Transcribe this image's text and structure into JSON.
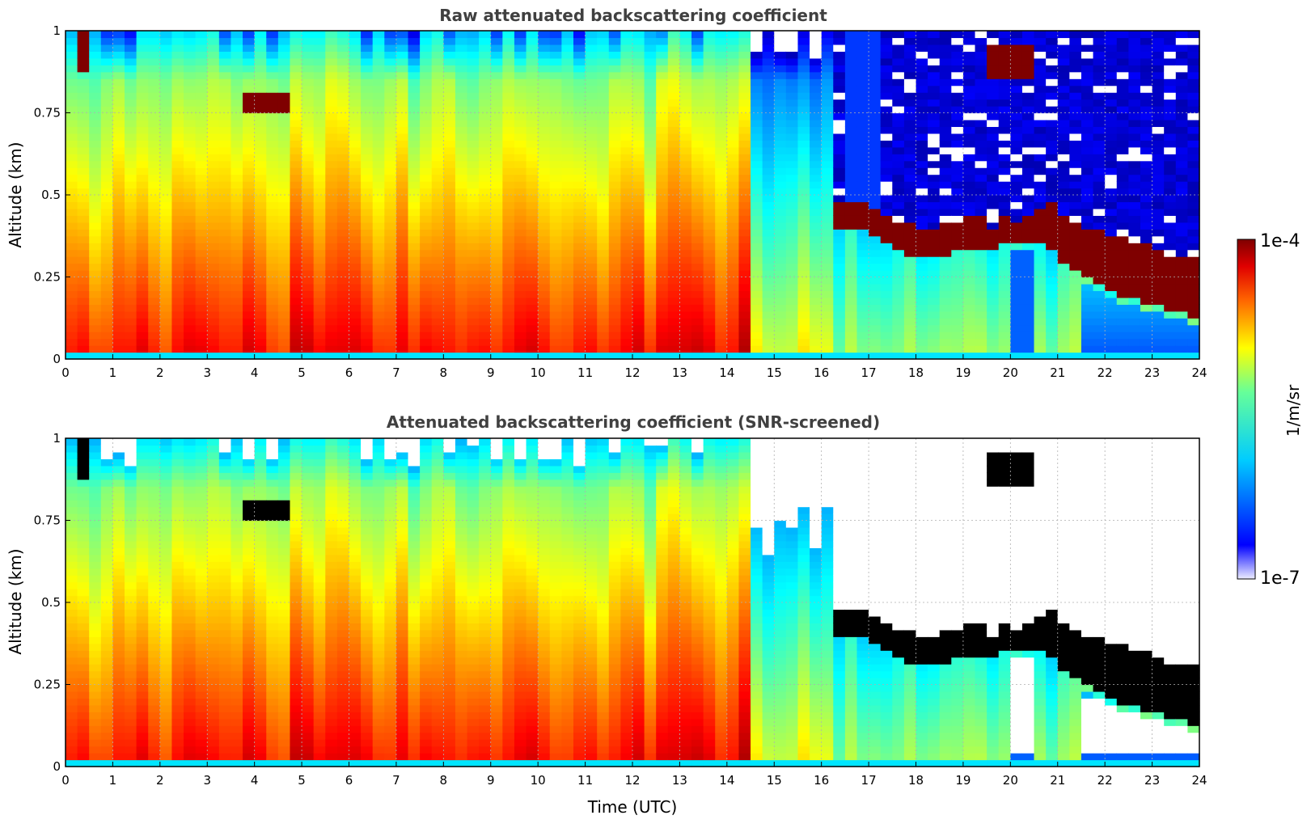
{
  "chart_data": [
    {
      "type": "heatmap",
      "title": "Raw attenuated backscattering coefficient",
      "xlabel": "",
      "ylabel": "Altitude (km)",
      "xlim": [
        0,
        24
      ],
      "ylim": [
        0,
        1
      ],
      "xticks": [
        "0",
        "1",
        "2",
        "3",
        "4",
        "5",
        "6",
        "7",
        "8",
        "9",
        "10",
        "11",
        "12",
        "13",
        "14",
        "15",
        "16",
        "17",
        "18",
        "19",
        "20",
        "21",
        "22",
        "23",
        "24"
      ],
      "yticks": [
        "0",
        "0.25",
        "0.5",
        "0.75",
        "1"
      ],
      "grid": true,
      "screened": false,
      "cloud_base_km": {
        "time_utc": [
          16.3,
          16.7,
          17.0,
          17.3,
          17.7,
          18.0,
          18.3,
          18.7,
          19.0,
          19.3,
          19.6,
          19.9,
          20.2,
          20.5,
          20.8,
          21.1,
          21.5,
          21.9,
          22.3,
          22.7,
          23.1,
          23.5,
          24.0
        ],
        "bottom_km": [
          0.4,
          0.39,
          0.4,
          0.36,
          0.33,
          0.31,
          0.3,
          0.32,
          0.33,
          0.35,
          0.32,
          0.36,
          0.34,
          0.35,
          0.34,
          0.3,
          0.26,
          0.23,
          0.2,
          0.18,
          0.16,
          0.14,
          0.13
        ],
        "top_km": [
          0.49,
          0.48,
          0.47,
          0.44,
          0.42,
          0.4,
          0.4,
          0.42,
          0.42,
          0.45,
          0.4,
          0.43,
          0.41,
          0.44,
          0.48,
          0.44,
          0.41,
          0.39,
          0.37,
          0.36,
          0.33,
          0.31,
          0.32
        ]
      },
      "upper_features": [
        {
          "t0": 3.7,
          "t1": 4.8,
          "z0": 0.74,
          "z1": 0.81,
          "level": "high"
        },
        {
          "t0": 19.6,
          "t1": 20.6,
          "z0": 0.85,
          "z1": 0.96,
          "level": "high"
        },
        {
          "t0": 0.25,
          "t1": 0.45,
          "z0": 0.88,
          "z1": 1.0,
          "level": "high"
        }
      ]
    },
    {
      "type": "heatmap",
      "title": "Attenuated backscattering coefficient (SNR-screened)",
      "xlabel": "Time (UTC)",
      "ylabel": "Altitude (km)",
      "xlim": [
        0,
        24
      ],
      "ylim": [
        0,
        1
      ],
      "xticks": [
        "0",
        "1",
        "2",
        "3",
        "4",
        "5",
        "6",
        "7",
        "8",
        "9",
        "10",
        "11",
        "12",
        "13",
        "14",
        "15",
        "16",
        "17",
        "18",
        "19",
        "20",
        "21",
        "22",
        "23",
        "24"
      ],
      "yticks": [
        "0",
        "0.25",
        "0.5",
        "0.75",
        "1"
      ],
      "grid": true,
      "screened": true,
      "saturation_color": "#000000"
    }
  ],
  "colorbar": {
    "label": "1/m/sr",
    "max_label": "1e-4",
    "min_label": "1e-7",
    "min_value": 1e-07,
    "max_value": 0.0001,
    "scale": "log",
    "colormap": "jet"
  },
  "colors": {
    "title": "#404040",
    "grid": "#b0b0b0",
    "saturated": "#000000",
    "cloud": "#7f0000"
  }
}
